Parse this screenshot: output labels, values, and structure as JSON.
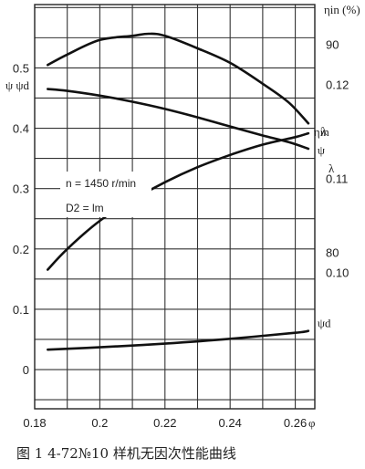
{
  "chart_data": {
    "type": "line",
    "caption": "图 1      4-72№10 样机无因次性能曲线",
    "xlabel": "φ",
    "x_ticks": [
      "0.18",
      "0.2",
      "0.22",
      "0.24",
      "0.26"
    ],
    "xlim": [
      0.18,
      0.266
    ],
    "left_axis": {
      "label": "ψ ψd",
      "ticks": [
        "0",
        "0.1",
        "0.2",
        "0.3",
        "0.4",
        "0.5"
      ],
      "ylim": [
        -0.065,
        0.605
      ]
    },
    "eta_axis": {
      "label": "ηin (%)",
      "ticks": [
        "80",
        "90"
      ],
      "ylim": [
        72.5,
        91.9
      ]
    },
    "lambda_axis": {
      "label": "λ",
      "ticks": [
        "0.10",
        "0.11",
        "0.12"
      ],
      "ylim": [
        0.0855,
        0.1285
      ]
    },
    "annotations": [
      "n = 1450 r/min",
      "D2 = lm"
    ],
    "series": [
      {
        "name": "ηin",
        "axis": "eta",
        "x": [
          0.184,
          0.19,
          0.2,
          0.21,
          0.215,
          0.22,
          0.23,
          0.24,
          0.25,
          0.258,
          0.264
        ],
        "y": [
          89.0,
          89.5,
          90.2,
          90.4,
          90.5,
          90.4,
          89.8,
          89.1,
          88.1,
          87.2,
          86.2
        ]
      },
      {
        "name": "ψ",
        "axis": "left",
        "x": [
          0.184,
          0.19,
          0.2,
          0.21,
          0.22,
          0.23,
          0.24,
          0.25,
          0.258,
          0.264
        ],
        "y": [
          0.465,
          0.462,
          0.454,
          0.444,
          0.432,
          0.418,
          0.403,
          0.388,
          0.377,
          0.366
        ]
      },
      {
        "name": "λ",
        "axis": "lambda",
        "x": [
          0.184,
          0.19,
          0.2,
          0.21,
          0.22,
          0.23,
          0.24,
          0.25,
          0.26,
          0.264
        ],
        "y": [
          0.1003,
          0.1025,
          0.1055,
          0.1077,
          0.1096,
          0.1112,
          0.1125,
          0.1136,
          0.1144,
          0.1148
        ]
      },
      {
        "name": "ψd",
        "axis": "left",
        "x": [
          0.184,
          0.2,
          0.22,
          0.24,
          0.26,
          0.264
        ],
        "y": [
          0.033,
          0.037,
          0.043,
          0.051,
          0.061,
          0.064
        ]
      }
    ]
  }
}
